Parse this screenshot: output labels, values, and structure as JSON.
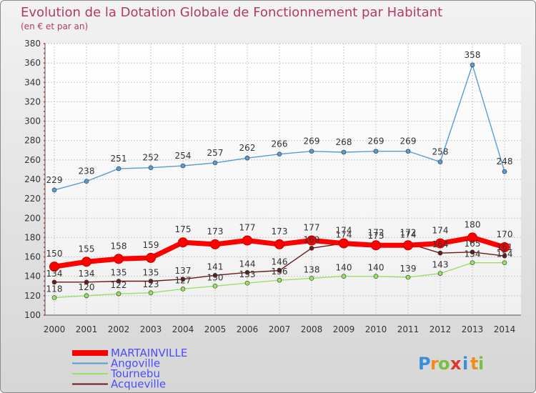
{
  "chart_data": {
    "type": "line",
    "title": "Evolution de la Dotation Globale de Fonctionnement par Habitant",
    "subtitle": "(en € et par an)",
    "xlabel": "",
    "ylabel": "",
    "ylim": [
      100,
      380
    ],
    "ytick_step": 20,
    "grid": true,
    "legend_position": "bottom-left",
    "categories": [
      "2000",
      "2001",
      "2002",
      "2003",
      "2004",
      "2005",
      "2006",
      "2007",
      "2008",
      "2009",
      "2010",
      "2011",
      "2012",
      "2013",
      "2014"
    ],
    "series": [
      {
        "name": "MARTAINVILLE",
        "color": "#ff0000",
        "values": [
          150,
          155,
          158,
          159,
          175,
          173,
          177,
          173,
          177,
          174,
          172,
          172,
          174,
          180,
          170
        ]
      },
      {
        "name": "Angoville",
        "color": "#5b9bd5",
        "values": [
          229,
          238,
          251,
          252,
          254,
          257,
          262,
          266,
          269,
          268,
          269,
          269,
          258,
          358,
          248
        ]
      },
      {
        "name": "Tournebu",
        "color": "#99e066",
        "values": [
          118,
          120,
          122,
          123,
          127,
          130,
          133,
          136,
          138,
          140,
          140,
          139,
          143,
          154,
          154
        ]
      },
      {
        "name": "Acqueville",
        "color": "#6b1a1a",
        "values": [
          134,
          134,
          135,
          135,
          137,
          141,
          144,
          146,
          169,
          174,
          173,
          174,
          164,
          165,
          161
        ]
      }
    ]
  },
  "brand": {
    "letters": [
      "P",
      "r",
      "o",
      "x",
      "i",
      "t",
      "i"
    ],
    "colors": [
      "#3b8fd9",
      "#f08c1e",
      "#7bc043",
      "#e0352b",
      "#3b8fd9",
      "#f08c1e",
      "#7bc043"
    ]
  }
}
